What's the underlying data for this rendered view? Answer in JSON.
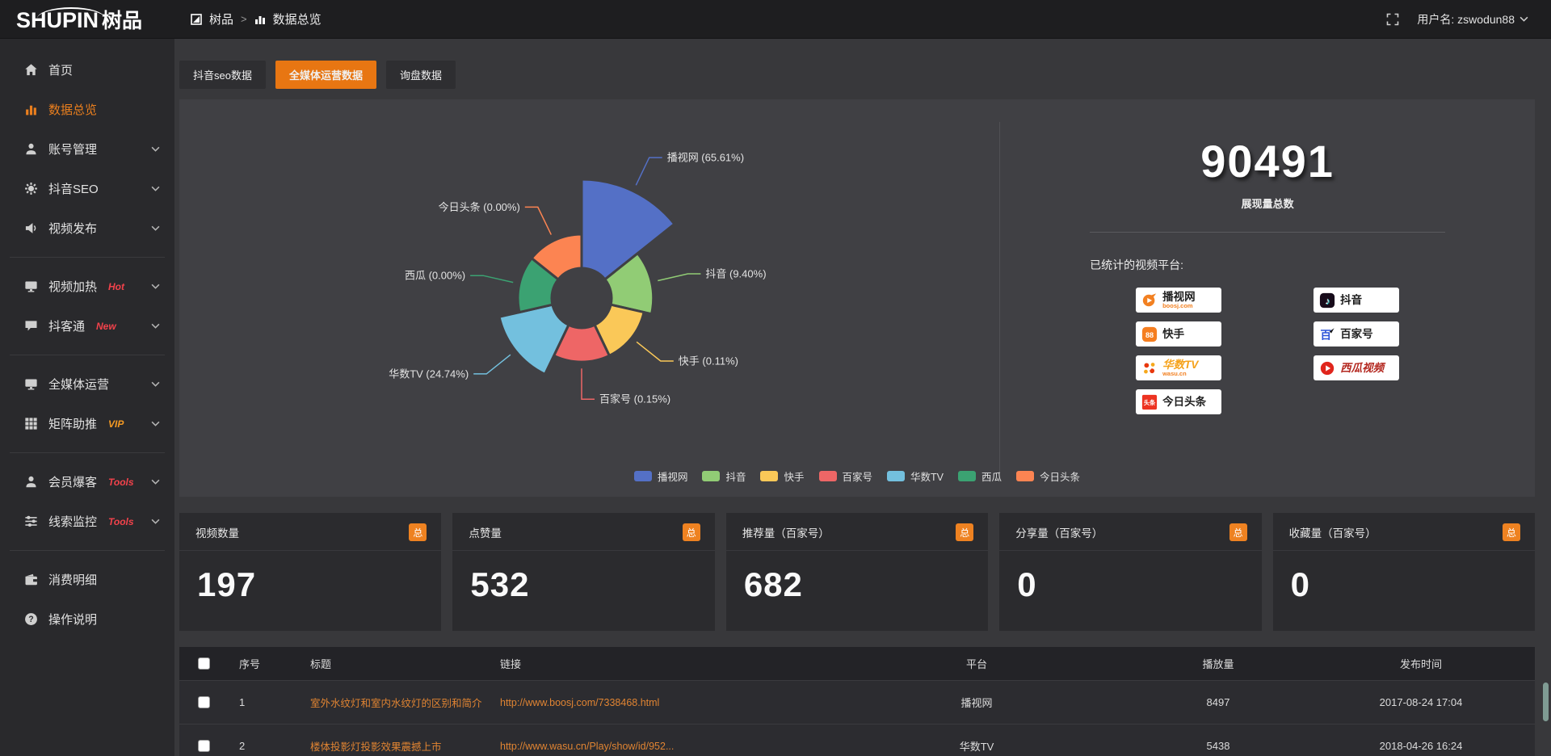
{
  "topbar": {
    "logo_text": "SHUPIN",
    "logo_cjk": "树品",
    "breadcrumb": {
      "root": "树品",
      "separator": ">",
      "current": "数据总览"
    },
    "username": "用户名: zswodun88"
  },
  "sidebar": {
    "items": [
      {
        "id": "home",
        "label": "首页",
        "icon": "home",
        "active": false,
        "expandable": false,
        "badge": "",
        "badge_color": "",
        "divider_after": false
      },
      {
        "id": "data-overview",
        "label": "数据总览",
        "icon": "chart",
        "active": true,
        "expandable": false,
        "badge": "",
        "badge_color": "",
        "divider_after": false
      },
      {
        "id": "account-management",
        "label": "账号管理",
        "icon": "user",
        "active": false,
        "expandable": true,
        "badge": "",
        "badge_color": "",
        "divider_after": false
      },
      {
        "id": "douyin-seo",
        "label": "抖音SEO",
        "icon": "gear",
        "active": false,
        "expandable": true,
        "badge": "",
        "badge_color": "",
        "divider_after": false
      },
      {
        "id": "video-publish",
        "label": "视频发布",
        "icon": "speaker",
        "active": false,
        "expandable": true,
        "badge": "",
        "badge_color": "",
        "divider_after": true
      },
      {
        "id": "video-heating",
        "label": "视频加热",
        "icon": "monitor",
        "active": false,
        "expandable": true,
        "badge": "Hot",
        "badge_color": "#f3424b",
        "divider_after": false
      },
      {
        "id": "douketong",
        "label": "抖客通",
        "icon": "chat",
        "active": false,
        "expandable": true,
        "badge": "New",
        "badge_color": "#f3424b",
        "divider_after": true
      },
      {
        "id": "omnimedia-operation",
        "label": "全媒体运营",
        "icon": "monitor",
        "active": false,
        "expandable": true,
        "badge": "",
        "badge_color": "",
        "divider_after": false
      },
      {
        "id": "matrix-boost",
        "label": "矩阵助推",
        "icon": "grid",
        "active": false,
        "expandable": true,
        "badge": "VIP",
        "badge_color": "#f59a23",
        "divider_after": true
      },
      {
        "id": "member-baoke",
        "label": "会员爆客",
        "icon": "user",
        "active": false,
        "expandable": true,
        "badge": "Tools",
        "badge_color": "#f3424b",
        "divider_after": false
      },
      {
        "id": "clue-monitoring",
        "label": "线索监控",
        "icon": "sliders",
        "active": false,
        "expandable": true,
        "badge": "Tools",
        "badge_color": "#f3424b",
        "divider_after": true
      },
      {
        "id": "consumption-details",
        "label": "消费明细",
        "icon": "wallet",
        "active": false,
        "expandable": false,
        "badge": "",
        "badge_color": "",
        "divider_after": false
      },
      {
        "id": "operation-guide",
        "label": "操作说明",
        "icon": "question",
        "active": false,
        "expandable": false,
        "badge": "",
        "badge_color": "",
        "divider_after": false
      }
    ]
  },
  "tabs": [
    {
      "id": "douyin-seo-data",
      "label": "抖音seo数据",
      "active": false
    },
    {
      "id": "omnimedia-operation-data",
      "label": "全媒体运营数据",
      "active": true
    },
    {
      "id": "inquiry-data",
      "label": "询盘数据",
      "active": false
    }
  ],
  "chart_data": {
    "type": "pie",
    "subtype": "nightingale-rose",
    "title": "",
    "legend_position": "bottom",
    "series": [
      {
        "name": "播视网",
        "value": 65.61,
        "pct_label": "65.61%",
        "color": "#5470c6"
      },
      {
        "name": "抖音",
        "value": 9.4,
        "pct_label": "9.40%",
        "color": "#91cc75"
      },
      {
        "name": "快手",
        "value": 0.11,
        "pct_label": "0.11%",
        "color": "#fac858"
      },
      {
        "name": "百家号",
        "value": 0.15,
        "pct_label": "0.15%",
        "color": "#ee6666"
      },
      {
        "name": "华数TV",
        "value": 24.74,
        "pct_label": "24.74%",
        "color": "#73c0de"
      },
      {
        "name": "西瓜",
        "value": 0,
        "pct_label": "0.00%",
        "color": "#3ba272"
      },
      {
        "name": "今日头条",
        "value": 0,
        "pct_label": "0.00%",
        "color": "#fc8452"
      }
    ]
  },
  "summary": {
    "total_value": "90491",
    "total_label": "展现量总数",
    "platforms_label": "已统计的视频平台:",
    "platform_columns": [
      [
        {
          "name": "播视网",
          "sub": "boosj.com",
          "mark": "boosj-logo",
          "name_color": "#222222",
          "italic": false
        },
        {
          "name": "快手",
          "sub": "",
          "mark": "kuaishou-logo",
          "name_color": "#222222",
          "italic": false
        },
        {
          "name": "华数TV",
          "sub": "wasu.cn",
          "mark": "wasu-logo",
          "name_color": "#f5a21b",
          "italic": true
        },
        {
          "name": "今日头条",
          "sub": "",
          "mark": "toutiao-logo",
          "name_color": "#222222",
          "italic": false
        }
      ],
      [
        {
          "name": "抖音",
          "sub": "",
          "mark": "douyin-logo",
          "name_color": "#1a1a1a",
          "italic": false
        },
        {
          "name": "百家号",
          "sub": "",
          "mark": "baijiahao-logo",
          "name_color": "#222222",
          "italic": false
        },
        {
          "name": "西瓜视频",
          "sub": "",
          "mark": "xigua-logo",
          "name_color": "#b3261e",
          "italic": true
        }
      ]
    ]
  },
  "stat_cards": [
    {
      "title": "视频数量",
      "badge": "总",
      "value": "197"
    },
    {
      "title": "点赞量",
      "badge": "总",
      "value": "532"
    },
    {
      "title": "推荐量（百家号）",
      "badge": "总",
      "value": "682"
    },
    {
      "title": "分享量（百家号）",
      "badge": "总",
      "value": "0"
    },
    {
      "title": "收藏量（百家号）",
      "badge": "总",
      "value": "0"
    }
  ],
  "table": {
    "columns": [
      {
        "key": "index",
        "label": "序号"
      },
      {
        "key": "title",
        "label": "标题"
      },
      {
        "key": "link",
        "label": "链接"
      },
      {
        "key": "platform",
        "label": "平台"
      },
      {
        "key": "plays",
        "label": "播放量"
      },
      {
        "key": "time",
        "label": "发布时间"
      }
    ],
    "rows": [
      {
        "index": "1",
        "title": "室外水纹灯和室内水纹灯的区别和简介",
        "link": "http://www.boosj.com/7338468.html",
        "platform": "播视网",
        "plays": "8497",
        "time": "2017-08-24 17:04"
      },
      {
        "index": "2",
        "title": "楼体投影灯投影效果震撼上市",
        "link": "http://www.wasu.cn/Play/show/id/952...",
        "platform": "华数TV",
        "plays": "5438",
        "time": "2018-04-26 16:24"
      }
    ]
  }
}
